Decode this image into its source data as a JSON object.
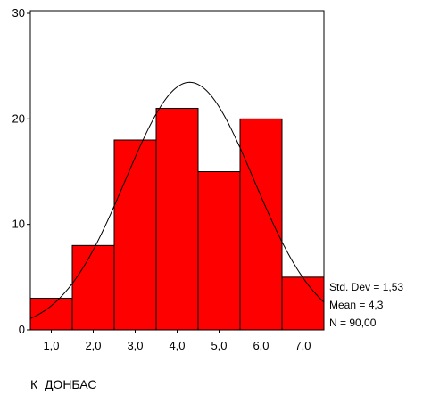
{
  "chart_data": {
    "type": "bar",
    "subtype": "histogram",
    "categories": [
      "1,0",
      "2,0",
      "3,0",
      "4,0",
      "5,0",
      "6,0",
      "7,0"
    ],
    "x_centers": [
      1,
      2,
      3,
      4,
      5,
      6,
      7
    ],
    "values": [
      3,
      8,
      18,
      21,
      15,
      20,
      5
    ],
    "bar_color": "#ff0000",
    "ylim": [
      0,
      30
    ],
    "xlim": [
      0.5,
      7.5
    ],
    "yticks": [
      "0",
      "10",
      "20",
      "30"
    ],
    "ytick_values": [
      0,
      10,
      20,
      30
    ],
    "xlabel": "К_ДОНБАС",
    "ylabel": "",
    "title": "",
    "grid": false,
    "normal_curve": {
      "mean": 4.3,
      "sd": 1.53,
      "n": 90,
      "bin_width": 1
    },
    "stats": {
      "std_dev": "Std. Dev = 1,53",
      "mean": "Mean = 4,3",
      "n": "N = 90,00"
    }
  }
}
